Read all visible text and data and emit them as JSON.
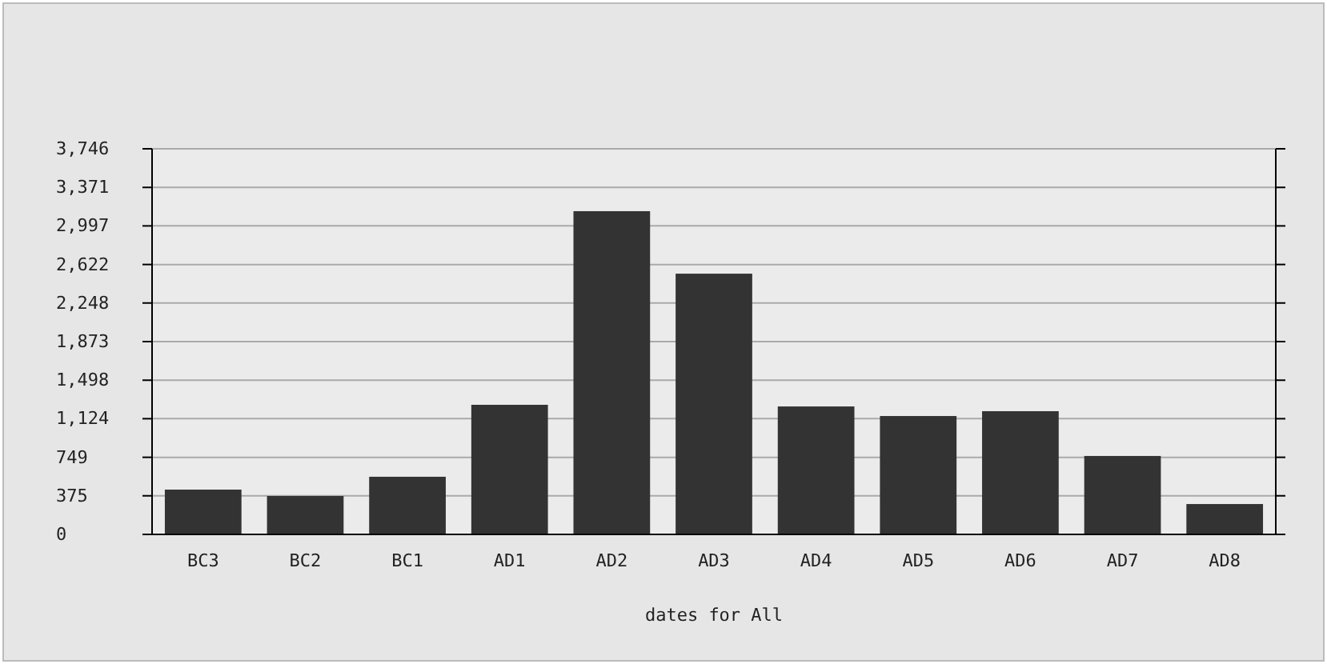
{
  "chart_data": {
    "type": "bar",
    "xlabel": "dates for All",
    "categories": [
      "BC3",
      "BC2",
      "BC1",
      "AD1",
      "AD2",
      "AD3",
      "AD4",
      "AD5",
      "AD6",
      "AD7",
      "AD8"
    ],
    "values": [
      435,
      373,
      560,
      1259,
      3140,
      2533,
      1243,
      1150,
      1197,
      762,
      295
    ],
    "color": "#333333",
    "ylim": [
      0,
      3746
    ],
    "yticks": [
      {
        "value": 0,
        "label": "0"
      },
      {
        "value": 375,
        "label": "375"
      },
      {
        "value": 749,
        "label": "749"
      },
      {
        "value": 1124,
        "label": "1,124"
      },
      {
        "value": 1498,
        "label": "1,498"
      },
      {
        "value": 1873,
        "label": "1,873"
      },
      {
        "value": 2248,
        "label": "2,248"
      },
      {
        "value": 2622,
        "label": "2,622"
      },
      {
        "value": 2997,
        "label": "2,997"
      },
      {
        "value": 3371,
        "label": "3,371"
      },
      {
        "value": 3746,
        "label": "3,746"
      }
    ],
    "grid": "y"
  }
}
